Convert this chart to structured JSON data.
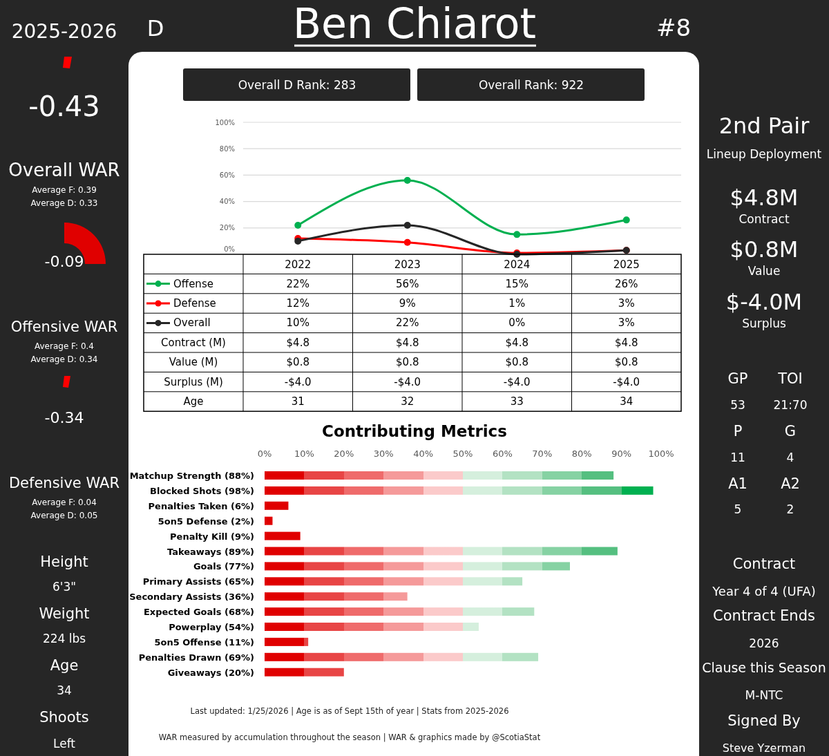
{
  "chart_data": [
    {
      "type": "other",
      "title": "Ben Chiarot",
      "annotations": [
        "2025-2026",
        "D",
        "#8",
        "-0.43",
        "Overall WAR",
        "Average F:  0.39",
        "Average D:  0.33",
        "-0.09",
        "Offensive WAR",
        "Average F: 0.4",
        "Average D: 0.34",
        "-0.34",
        "Defensive WAR",
        "Average F: 0.04",
        "Average D: 0.05",
        "Height",
        "6'3\"",
        "Weight",
        "224 lbs",
        "Age",
        "34",
        "Shoots",
        "Left",
        "2nd Pair",
        "Lineup Deployment",
        "$4.8M",
        "Contract",
        "$0.8M",
        "Value",
        "$-4.0M",
        "Surplus",
        "GP",
        "TOI",
        "53",
        "21:70",
        "P",
        "G",
        "11",
        "4",
        "A1",
        "A2",
        "5",
        "2",
        "Contract",
        "Year 4 of 4 (UFA)",
        "Contract Ends",
        "2026",
        "Clause this Season",
        "M-NTC",
        "Signed By",
        "Steve Yzerman",
        "Overall D Rank: 283",
        "Overall Rank: 922",
        "Last updated: 1/25/2026   |   Age is as of Sept 15th of year   |   Stats from 2025-2026",
        "WAR measured by accumulation throughout the season   |   WAR & graphics made by @ScotiaStat"
      ]
    },
    {
      "type": "line",
      "categories": [
        "2022",
        "2023",
        "2024",
        "2025"
      ],
      "ylim": [
        0,
        100
      ],
      "yticks": [
        {
          "value": 0,
          "label": "0%"
        },
        {
          "value": 20,
          "label": "20%"
        },
        {
          "value": 40,
          "label": "40%"
        },
        {
          "value": 60,
          "label": "60%"
        },
        {
          "value": 80,
          "label": "80%"
        },
        {
          "value": 100,
          "label": "100%"
        }
      ],
      "grid": "y",
      "legend": "bottom",
      "marker": "circle",
      "line_style": "solid",
      "series": [
        {
          "name": "Offense",
          "color": "#00b050",
          "values": [
            22,
            56,
            15,
            26
          ],
          "value_labels": [
            "22%",
            "56%",
            "15%",
            "26%"
          ]
        },
        {
          "name": "Defense",
          "color": "#ff0000",
          "values": [
            12,
            9,
            1,
            3
          ],
          "value_labels": [
            "12%",
            "9%",
            "1%",
            "3%"
          ]
        },
        {
          "name": "Overall",
          "color": "#262626",
          "values": [
            10,
            22,
            0,
            3
          ],
          "value_labels": [
            "10%",
            "22%",
            "0%",
            "3%"
          ]
        }
      ],
      "annotations": [
        "Contract (M)",
        "$4.8",
        "$4.8",
        "$4.8",
        "$4.8",
        "Value (M)",
        "$0.8",
        "$0.8",
        "$0.8",
        "$0.8",
        "Surplus (M)",
        "-$4.0",
        "-$4.0",
        "-$4.0",
        "-$4.0",
        "Age",
        "31",
        "32",
        "33",
        "34"
      ]
    },
    {
      "type": "bar",
      "orientation": "horizontal",
      "title": "Contributing Metrics",
      "categories": [
        "Matchup Strength (88%)",
        "Blocked Shots (98%)",
        "Penalties Taken (6%)",
        "5on5 Defense (2%)",
        "Penalty Kill (9%)",
        "Takeaways (89%)",
        "Goals (77%)",
        "Primary Assists (65%)",
        "Secondary Assists (36%)",
        "Expected Goals (68%)",
        "Powerplay (54%)",
        "5on5 Offense (11%)",
        "Penalties Drawn (69%)",
        "Giveaways (20%)"
      ],
      "values": [
        88,
        98,
        6,
        2,
        9,
        89,
        77,
        65,
        36,
        68,
        54,
        11,
        69,
        20
      ],
      "color": "#e00000",
      "xlim": [
        0,
        100
      ],
      "xticks": [
        {
          "value": 0,
          "label": "0%"
        },
        {
          "value": 10,
          "label": "10%"
        },
        {
          "value": 20,
          "label": "20%"
        },
        {
          "value": 30,
          "label": "30%"
        },
        {
          "value": 40,
          "label": "40%"
        },
        {
          "value": 50,
          "label": "50%"
        },
        {
          "value": 60,
          "label": "60%"
        },
        {
          "value": 70,
          "label": "70%"
        },
        {
          "value": 80,
          "label": "80%"
        },
        {
          "value": 90,
          "label": "90%"
        },
        {
          "value": 100,
          "label": "100%"
        }
      ]
    }
  ]
}
